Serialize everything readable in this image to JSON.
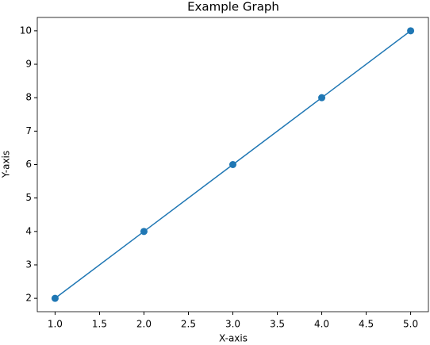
{
  "chart_data": {
    "type": "line",
    "title": "Example Graph",
    "x_label": "X-axis",
    "y_label": "Y-axis",
    "x": [
      1,
      2,
      3,
      4,
      5
    ],
    "series": [
      {
        "color": "#1f77b4",
        "values": [
          2,
          4,
          6,
          8,
          10
        ]
      }
    ],
    "xlim": [
      0.8,
      5.2
    ],
    "xticks": [
      {
        "value": 1,
        "label": "1.0"
      },
      1.5,
      {
        "value": 2,
        "label": "2.0"
      },
      2.5,
      {
        "value": 3,
        "label": "3.0"
      },
      3.5,
      {
        "value": 4,
        "label": "4.0"
      },
      4.5,
      {
        "value": 5,
        "label": "5.0"
      }
    ],
    "ylim": [
      1.6,
      10.4
    ],
    "yticks": [
      2,
      3,
      4,
      5,
      6,
      7,
      8,
      9,
      10
    ],
    "markers": true
  }
}
